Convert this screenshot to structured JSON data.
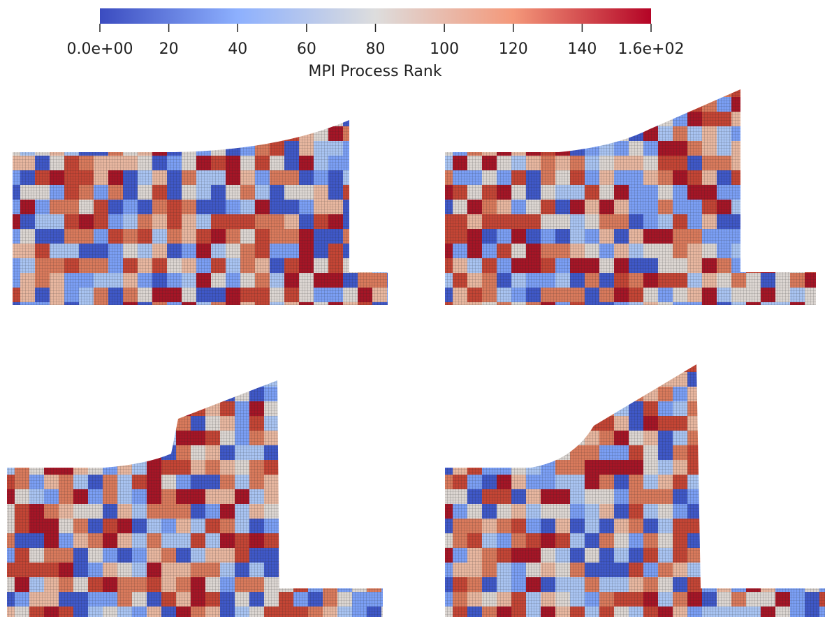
{
  "colorbar": {
    "title": "MPI Process Rank",
    "range": [
      0,
      160
    ],
    "ticks": [
      {
        "value": 0,
        "label": "0.0e+00"
      },
      20,
      40,
      60,
      80,
      100,
      120,
      140,
      {
        "value": 160,
        "label": "1.6e+02"
      }
    ],
    "colormap": [
      "#3b4cc0",
      "#8db0fe",
      "#dddddd",
      "#f4987a",
      "#b40426"
    ]
  }
}
